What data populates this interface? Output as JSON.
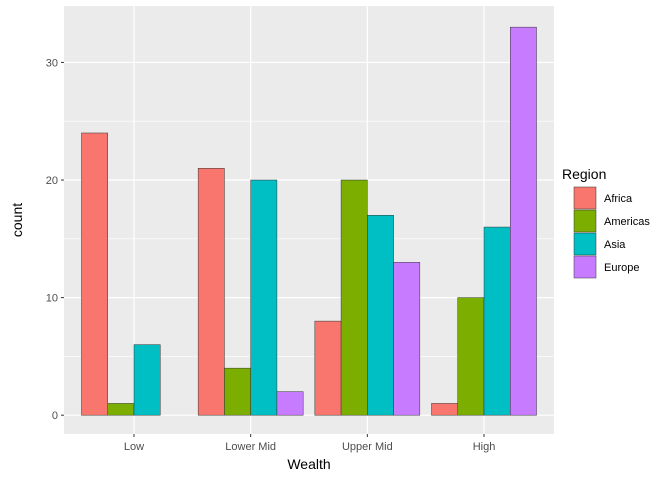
{
  "chart_data": {
    "type": "bar",
    "xlabel": "Wealth",
    "ylabel": "count",
    "categories": [
      "Low",
      "Lower Mid",
      "Upper Mid",
      "High"
    ],
    "ylim": [
      -1.6,
      34.8
    ],
    "yticks": [
      0,
      10,
      20,
      30
    ],
    "grid": true,
    "legend": {
      "title": "Region",
      "placement": "right"
    },
    "series": [
      {
        "name": "Africa",
        "color": "#F8766D",
        "values": [
          24,
          21,
          8,
          1
        ]
      },
      {
        "name": "Americas",
        "color": "#7CAE00",
        "values": [
          1,
          4,
          20,
          10
        ]
      },
      {
        "name": "Asia",
        "color": "#00BFC4",
        "values": [
          6,
          20,
          17,
          16
        ]
      },
      {
        "name": "Europe",
        "color": "#C77CFF",
        "values": [
          0,
          2,
          13,
          33
        ]
      }
    ]
  }
}
